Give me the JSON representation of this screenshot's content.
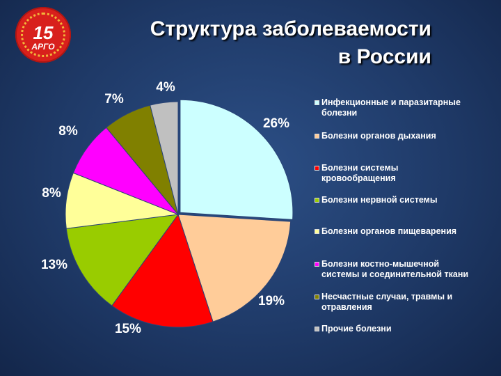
{
  "header": {
    "title_line1": "Структура заболеваемости",
    "title_line2": "в России"
  },
  "logo": {
    "number": "15",
    "brand": "АРГО"
  },
  "chart_data": {
    "type": "pie",
    "title": "Структура заболеваемости в России",
    "legend_placement": "right",
    "slices": [
      {
        "label": "Инфекционные и паразитарные болезни",
        "legend_lines": [
          "Инфекционные и паразитарные",
          "болезни"
        ],
        "value": 26,
        "value_label": "26%",
        "color": "#ccffff"
      },
      {
        "label": "Болезни органов дыхания",
        "legend_lines": [
          "Болезни органов дыхания"
        ],
        "value": 19,
        "value_label": "19%",
        "color": "#ffcc99"
      },
      {
        "label": "Болезни системы кровообращения",
        "legend_lines": [
          "Болезни системы",
          "кровообращения"
        ],
        "value": 15,
        "value_label": "15%",
        "color": "#ff0000"
      },
      {
        "label": "Болезни нервной системы",
        "legend_lines": [
          "Болезни нервной системы"
        ],
        "value": 13,
        "value_label": "13%",
        "color": "#99cc00"
      },
      {
        "label": "Болезни органов пищеварения",
        "legend_lines": [
          "Болезни органов пищеварения"
        ],
        "value": 8,
        "value_label": "8%",
        "color": "#ffff99"
      },
      {
        "label": "Болезни костно-мышечной системы и соединительной ткани",
        "legend_lines": [
          "Болезни костно-мышечной",
          "системы и соединительной ткани"
        ],
        "value": 8,
        "value_label": "8%",
        "color": "#ff00ff"
      },
      {
        "label": "Несчастные случаи, травмы и отравления",
        "legend_lines": [
          "Несчастные случаи, травмы и",
          "отравления"
        ],
        "value": 7,
        "value_label": "7%",
        "color": "#808000"
      },
      {
        "label": "Прочие болезни",
        "legend_lines": [
          "Прочие болезни"
        ],
        "value": 4,
        "value_label": "4%",
        "color": "#c0c0c0"
      }
    ]
  }
}
